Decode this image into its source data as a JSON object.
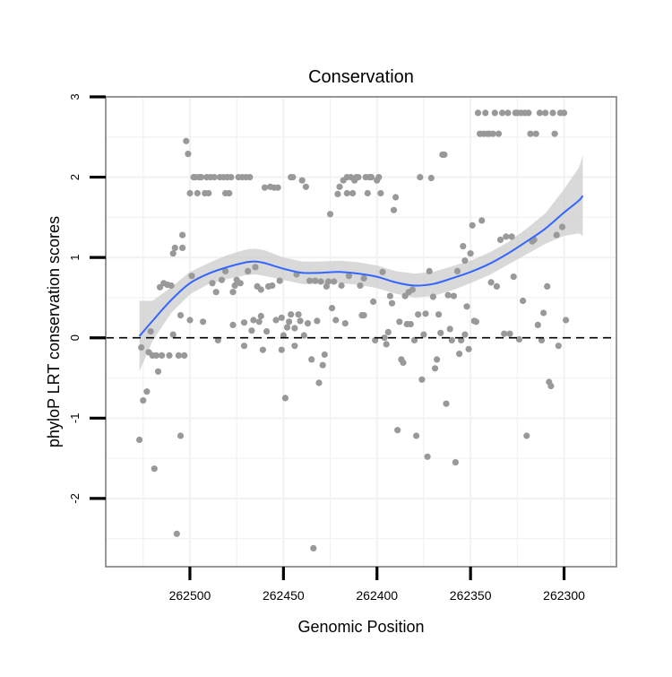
{
  "chart_data": {
    "type": "scatter",
    "title": "Conservation",
    "xlabel": "Genomic Position",
    "ylabel": "phyloP LRT conservation scores",
    "x_reversed": true,
    "xlim": [
      262545,
      262272
    ],
    "ylim": [
      -2.85,
      3.0
    ],
    "xticks": [
      262500,
      262450,
      262400,
      262350,
      262300
    ],
    "xtick_labels": [
      "262500",
      "262450",
      "262400",
      "262350",
      "262300"
    ],
    "yticks": [
      -2,
      -1,
      0,
      1,
      2,
      3
    ],
    "ytick_labels": [
      "-2",
      "-1",
      "0",
      "1",
      "2",
      "3"
    ],
    "reference_line": {
      "y": 0,
      "style": "dashed",
      "color": "#000000"
    },
    "colors": {
      "points": "#999999",
      "smooth": "#3366ff",
      "ribbon": "#cccccc",
      "panel_border": "#7f7f7f",
      "grid": "#f2f2f2"
    },
    "points": [
      [
        262527,
        -1.27
      ],
      [
        262526,
        -0.12
      ],
      [
        262525,
        -0.78
      ],
      [
        262523,
        -0.67
      ],
      [
        262522,
        -0.18
      ],
      [
        262521,
        0.08
      ],
      [
        262520,
        -0.22
      ],
      [
        262519,
        -1.63
      ],
      [
        262518,
        -0.22
      ],
      [
        262517,
        -0.42
      ],
      [
        262516,
        0.63
      ],
      [
        262515,
        -0.22
      ],
      [
        262514,
        0.68
      ],
      [
        262512,
        0.66
      ],
      [
        262511,
        -0.22
      ],
      [
        262510,
        0.65
      ],
      [
        262509,
        0.04
      ],
      [
        262509,
        1.05
      ],
      [
        262508,
        1.12
      ],
      [
        262507,
        -2.44
      ],
      [
        262506,
        -0.22
      ],
      [
        262505,
        -1.22
      ],
      [
        262505,
        0.28
      ],
      [
        262504,
        1.28
      ],
      [
        262504,
        1.12
      ],
      [
        262503,
        -0.22
      ],
      [
        262502,
        2.45
      ],
      [
        262501,
        2.29
      ],
      [
        262500,
        1.8
      ],
      [
        262500,
        0.22
      ],
      [
        262499,
        0.77
      ],
      [
        262498,
        2.0
      ],
      [
        262497,
        2.0
      ],
      [
        262496,
        1.8
      ],
      [
        262495,
        2.0
      ],
      [
        262494,
        2.0
      ],
      [
        262493,
        0.2
      ],
      [
        262492,
        1.8
      ],
      [
        262491,
        2.0
      ],
      [
        262490,
        1.8
      ],
      [
        262489,
        2.0
      ],
      [
        262488,
        0.68
      ],
      [
        262487,
        2.0
      ],
      [
        262486,
        0.57
      ],
      [
        262485,
        -0.03
      ],
      [
        262484,
        2.0
      ],
      [
        262483,
        0.72
      ],
      [
        262482,
        2.0
      ],
      [
        262481,
        0.83
      ],
      [
        262481,
        1.8
      ],
      [
        262480,
        2.0
      ],
      [
        262479,
        1.8
      ],
      [
        262478,
        2.0
      ],
      [
        262477,
        0.57
      ],
      [
        262477,
        0.16
      ],
      [
        262476,
        0.65
      ],
      [
        262475,
        0.72
      ],
      [
        262474,
        2.0
      ],
      [
        262473,
        0.68
      ],
      [
        262472,
        2.0
      ],
      [
        262471,
        0.19
      ],
      [
        262471,
        -0.1
      ],
      [
        262470,
        2.0
      ],
      [
        262469,
        0.83
      ],
      [
        262468,
        2.0
      ],
      [
        262467,
        0.09
      ],
      [
        262466,
        0.22
      ],
      [
        262465,
        0.88
      ],
      [
        262464,
        0.64
      ],
      [
        262463,
        0.2
      ],
      [
        262462,
        0.27
      ],
      [
        262462,
        0.6
      ],
      [
        262461,
        -0.15
      ],
      [
        262460,
        1.87
      ],
      [
        262459,
        0.08
      ],
      [
        262458,
        0.64
      ],
      [
        262457,
        1.88
      ],
      [
        262456,
        0.65
      ],
      [
        262455,
        1.87
      ],
      [
        262454,
        0.22
      ],
      [
        262453,
        1.87
      ],
      [
        262452,
        0.71
      ],
      [
        262451,
        -0.15
      ],
      [
        262451,
        0.25
      ],
      [
        262450,
        0.03
      ],
      [
        262449,
        -0.75
      ],
      [
        262448,
        0.13
      ],
      [
        262447,
        0.2
      ],
      [
        262446,
        2.0
      ],
      [
        262446,
        0.29
      ],
      [
        262445,
        2.0
      ],
      [
        262444,
        -0.1
      ],
      [
        262444,
        0.12
      ],
      [
        262443,
        0.79
      ],
      [
        262442,
        0.29
      ],
      [
        262441,
        0.21
      ],
      [
        262440,
        1.96
      ],
      [
        262439,
        0.03
      ],
      [
        262438,
        1.88
      ],
      [
        262437,
        0.18
      ],
      [
        262436,
        0.71
      ],
      [
        262435,
        -0.27
      ],
      [
        262434,
        -2.62
      ],
      [
        262433,
        0.71
      ],
      [
        262432,
        0.21
      ],
      [
        262431,
        -0.56
      ],
      [
        262430,
        0.7
      ],
      [
        262429,
        -0.34
      ],
      [
        262428,
        -0.21
      ],
      [
        262427,
        0.64
      ],
      [
        262426,
        0.7
      ],
      [
        262425,
        1.54
      ],
      [
        262424,
        0.37
      ],
      [
        262423,
        0.7
      ],
      [
        262422,
        0.22
      ],
      [
        262421,
        1.79
      ],
      [
        262420,
        1.88
      ],
      [
        262419,
        0.65
      ],
      [
        262418,
        1.96
      ],
      [
        262417,
        0.18
      ],
      [
        262416,
        2.0
      ],
      [
        262416,
        1.8
      ],
      [
        262415,
        0.77
      ],
      [
        262414,
        2.0
      ],
      [
        262413,
        1.8
      ],
      [
        262412,
        1.96
      ],
      [
        262411,
        2.0
      ],
      [
        262410,
        2.0
      ],
      [
        262409,
        0.65
      ],
      [
        262408,
        0.28
      ],
      [
        262407,
        0.74
      ],
      [
        262407,
        0.28
      ],
      [
        262406,
        2.0
      ],
      [
        262405,
        1.8
      ],
      [
        262404,
        2.0
      ],
      [
        262403,
        2.0
      ],
      [
        262402,
        0.45
      ],
      [
        262401,
        -0.03
      ],
      [
        262400,
        1.96
      ],
      [
        262399,
        2.0
      ],
      [
        262398,
        1.8
      ],
      [
        262397,
        0.82
      ],
      [
        262396,
        0.0
      ],
      [
        262395,
        -0.08
      ],
      [
        262394,
        0.07
      ],
      [
        262393,
        0.52
      ],
      [
        262392,
        0.43
      ],
      [
        262391,
        1.59
      ],
      [
        262390,
        1.75
      ],
      [
        262389,
        -1.15
      ],
      [
        262388,
        0.2
      ],
      [
        262387,
        -0.27
      ],
      [
        262386,
        -0.31
      ],
      [
        262385,
        0.52
      ],
      [
        262384,
        0.17
      ],
      [
        262383,
        0.57
      ],
      [
        262382,
        0.17
      ],
      [
        262381,
        0.6
      ],
      [
        262380,
        -0.03
      ],
      [
        262379,
        -1.22
      ],
      [
        262378,
        0.29
      ],
      [
        262377,
        2.0
      ],
      [
        262376,
        -0.52
      ],
      [
        262375,
        0.04
      ],
      [
        262374,
        0.3
      ],
      [
        262373,
        -1.48
      ],
      [
        262372,
        0.83
      ],
      [
        262371,
        1.99
      ],
      [
        262370,
        0.51
      ],
      [
        262369,
        -0.38
      ],
      [
        262368,
        -0.27
      ],
      [
        262367,
        0.29
      ],
      [
        262366,
        0.06
      ],
      [
        262365,
        2.28
      ],
      [
        262364,
        2.28
      ],
      [
        262363,
        -0.82
      ],
      [
        262362,
        0.53
      ],
      [
        262361,
        0.11
      ],
      [
        262360,
        -0.03
      ],
      [
        262359,
        0.52
      ],
      [
        262358,
        -1.55
      ],
      [
        262357,
        0.83
      ],
      [
        262356,
        -0.2
      ],
      [
        262355,
        -0.03
      ],
      [
        262354,
        1.14
      ],
      [
        262353,
        0.04
      ],
      [
        262353,
        0.96
      ],
      [
        262352,
        0.39
      ],
      [
        262351,
        -0.14
      ],
      [
        262350,
        1.05
      ],
      [
        262349,
        1.4
      ],
      [
        262348,
        0.21
      ],
      [
        262347,
        0.2
      ],
      [
        262346,
        2.8
      ],
      [
        262345,
        2.54
      ],
      [
        262344,
        1.46
      ],
      [
        262343,
        2.54
      ],
      [
        262342,
        2.8
      ],
      [
        262341,
        2.54
      ],
      [
        262340,
        2.54
      ],
      [
        262339,
        0.69
      ],
      [
        262338,
        2.54
      ],
      [
        262337,
        2.8
      ],
      [
        262336,
        0.64
      ],
      [
        262335,
        2.54
      ],
      [
        262334,
        1.22
      ],
      [
        262333,
        2.8
      ],
      [
        262332,
        0.05
      ],
      [
        262331,
        1.26
      ],
      [
        262330,
        2.8
      ],
      [
        262329,
        0.05
      ],
      [
        262328,
        1.26
      ],
      [
        262327,
        0.76
      ],
      [
        262326,
        2.8
      ],
      [
        262325,
        2.8
      ],
      [
        262324,
        -0.02
      ],
      [
        262323,
        2.8
      ],
      [
        262322,
        0.46
      ],
      [
        262321,
        2.8
      ],
      [
        262320,
        -1.22
      ],
      [
        262319,
        2.8
      ],
      [
        262318,
        2.54
      ],
      [
        262317,
        1.2
      ],
      [
        262316,
        1.22
      ],
      [
        262315,
        2.54
      ],
      [
        262314,
        0.16
      ],
      [
        262313,
        2.8
      ],
      [
        262312,
        -0.03
      ],
      [
        262311,
        0.31
      ],
      [
        262310,
        2.8
      ],
      [
        262309,
        0.64
      ],
      [
        262308,
        -0.55
      ],
      [
        262307,
        -0.6
      ],
      [
        262306,
        2.8
      ],
      [
        262305,
        2.54
      ],
      [
        262304,
        1.28
      ],
      [
        262303,
        -0.1
      ],
      [
        262302,
        2.8
      ],
      [
        262301,
        1.38
      ],
      [
        262300,
        2.8
      ],
      [
        262299,
        0.22
      ]
    ],
    "smooth": [
      [
        262527,
        0.02
      ],
      [
        262520,
        0.21
      ],
      [
        262510,
        0.47
      ],
      [
        262500,
        0.68
      ],
      [
        262490,
        0.8
      ],
      [
        262480,
        0.88
      ],
      [
        262470,
        0.94
      ],
      [
        262465,
        0.95
      ],
      [
        262460,
        0.93
      ],
      [
        262450,
        0.86
      ],
      [
        262440,
        0.81
      ],
      [
        262430,
        0.81
      ],
      [
        262420,
        0.82
      ],
      [
        262410,
        0.8
      ],
      [
        262400,
        0.76
      ],
      [
        262390,
        0.69
      ],
      [
        262380,
        0.65
      ],
      [
        262370,
        0.67
      ],
      [
        262360,
        0.74
      ],
      [
        262350,
        0.82
      ],
      [
        262340,
        0.92
      ],
      [
        262330,
        1.05
      ],
      [
        262320,
        1.2
      ],
      [
        262310,
        1.36
      ],
      [
        262300,
        1.56
      ],
      [
        262292,
        1.71
      ],
      [
        262290,
        1.77
      ]
    ],
    "ribbon_upper": [
      [
        262527,
        0.46
      ],
      [
        262520,
        0.46
      ],
      [
        262510,
        0.63
      ],
      [
        262500,
        0.82
      ],
      [
        262490,
        0.93
      ],
      [
        262480,
        1.03
      ],
      [
        262470,
        1.1
      ],
      [
        262465,
        1.11
      ],
      [
        262460,
        1.09
      ],
      [
        262450,
        1.0
      ],
      [
        262440,
        0.95
      ],
      [
        262430,
        0.95
      ],
      [
        262420,
        0.96
      ],
      [
        262410,
        0.94
      ],
      [
        262400,
        0.9
      ],
      [
        262390,
        0.83
      ],
      [
        262380,
        0.8
      ],
      [
        262370,
        0.82
      ],
      [
        262360,
        0.89
      ],
      [
        262350,
        0.96
      ],
      [
        262340,
        1.06
      ],
      [
        262330,
        1.19
      ],
      [
        262320,
        1.36
      ],
      [
        262310,
        1.55
      ],
      [
        262300,
        1.85
      ],
      [
        262292,
        2.12
      ],
      [
        262290,
        2.27
      ]
    ],
    "ribbon_lower": [
      [
        262527,
        -0.42
      ],
      [
        262520,
        -0.04
      ],
      [
        262510,
        0.31
      ],
      [
        262500,
        0.54
      ],
      [
        262490,
        0.67
      ],
      [
        262480,
        0.73
      ],
      [
        262470,
        0.78
      ],
      [
        262465,
        0.79
      ],
      [
        262460,
        0.77
      ],
      [
        262450,
        0.72
      ],
      [
        262440,
        0.67
      ],
      [
        262430,
        0.67
      ],
      [
        262420,
        0.68
      ],
      [
        262410,
        0.66
      ],
      [
        262400,
        0.62
      ],
      [
        262390,
        0.55
      ],
      [
        262380,
        0.5
      ],
      [
        262370,
        0.52
      ],
      [
        262360,
        0.59
      ],
      [
        262350,
        0.68
      ],
      [
        262340,
        0.78
      ],
      [
        262330,
        0.91
      ],
      [
        262320,
        1.04
      ],
      [
        262310,
        1.17
      ],
      [
        262300,
        1.27
      ],
      [
        262292,
        1.3
      ],
      [
        262290,
        1.27
      ]
    ]
  }
}
